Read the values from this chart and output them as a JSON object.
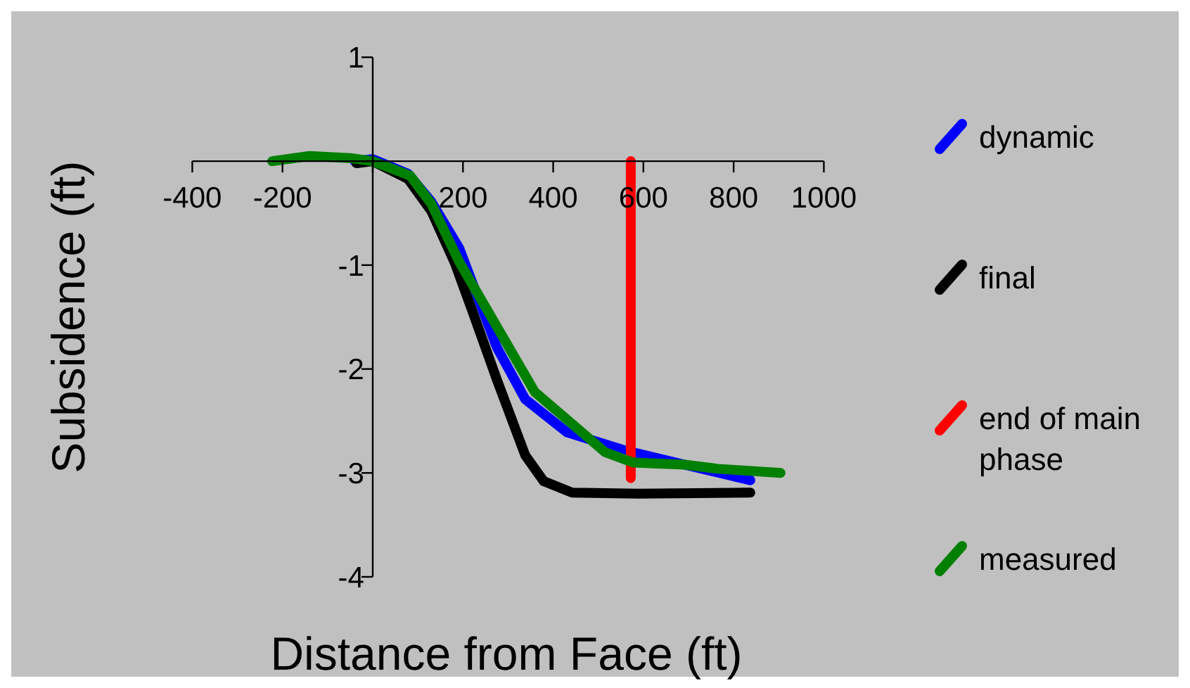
{
  "chart_data": {
    "type": "line",
    "xlabel": "Distance from Face (ft)",
    "ylabel": "Subsidence (ft)",
    "xlim": [
      -400,
      1000
    ],
    "ylim": [
      -4,
      1
    ],
    "xticks": [
      -400,
      -200,
      {
        "value": 0,
        "label": null
      },
      200,
      400,
      600,
      800,
      1000
    ],
    "yticks": [
      -4,
      -3,
      -2,
      -1,
      {
        "value": 0,
        "label": null
      },
      1
    ],
    "grid": false,
    "legend": "right",
    "marker": "none",
    "line_style": "solid",
    "series": [
      {
        "name": "dynamic",
        "color": "#0000ff",
        "x": [
          -40,
          0,
          78,
          130,
          192,
          275,
          338,
          431,
          556,
          691,
          837
        ],
        "values": [
          0,
          0.02,
          -0.12,
          -0.39,
          -0.84,
          -1.79,
          -2.29,
          -2.61,
          -2.78,
          -2.92,
          -3.07
        ]
      },
      {
        "name": "final",
        "color": "#000000",
        "x": [
          -36,
          0,
          78,
          130,
          182,
          224,
          275,
          338,
          379,
          442,
          587,
          837
        ],
        "values": [
          -0.02,
          0,
          -0.17,
          -0.48,
          -0.98,
          -1.48,
          -2.1,
          -2.83,
          -3.08,
          -3.19,
          -3.2,
          -3.19
        ]
      },
      {
        "name": "end of main phase",
        "color": "#ff0000",
        "x": [
          572,
          572
        ],
        "values": [
          0,
          -3.05
        ]
      },
      {
        "name": "measured",
        "color": "#008000",
        "x": [
          -223,
          -140,
          -50,
          0,
          83,
          130,
          192,
          359,
          515,
          577,
          691,
          764,
          904
        ],
        "values": [
          0,
          0.05,
          0.03,
          0,
          -0.14,
          -0.41,
          -0.97,
          -2.22,
          -2.8,
          -2.9,
          -2.92,
          -2.96,
          -3.0
        ]
      }
    ]
  }
}
